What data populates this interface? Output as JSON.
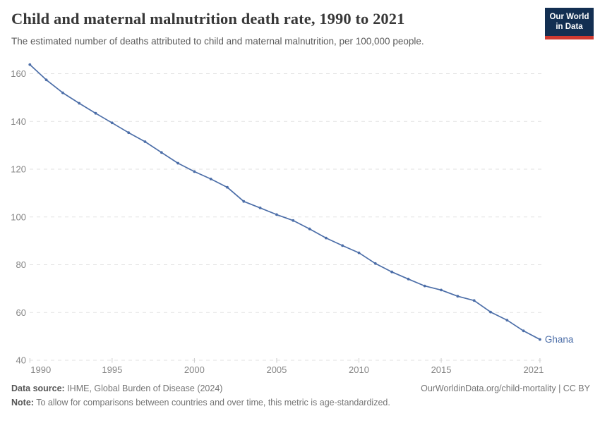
{
  "header": {
    "title": "Child and maternal malnutrition death rate, 1990 to 2021",
    "subtitle": "The estimated number of deaths attributed to child and maternal malnutrition, per 100,000 people.",
    "logo": {
      "line1": "Our World",
      "line2": "in Data"
    }
  },
  "chart_data": {
    "type": "line",
    "title": "Child and maternal malnutrition death rate, 1990 to 2021",
    "x": [
      1990,
      1991,
      1992,
      1993,
      1994,
      1995,
      1996,
      1997,
      1998,
      1999,
      2000,
      2001,
      2002,
      2003,
      2004,
      2005,
      2006,
      2007,
      2008,
      2009,
      2010,
      2011,
      2012,
      2013,
      2014,
      2015,
      2016,
      2017,
      2018,
      2019,
      2020,
      2021
    ],
    "series": [
      {
        "name": "Ghana",
        "color": "#4c6ea8",
        "values": [
          163.8,
          157.4,
          152.0,
          147.6,
          143.4,
          139.4,
          135.3,
          131.5,
          127.0,
          122.5,
          119.0,
          115.9,
          112.4,
          106.5,
          103.8,
          101.0,
          98.5,
          95.0,
          91.2,
          88.0,
          85.0,
          80.5,
          77.0,
          74.0,
          71.1,
          69.4,
          66.8,
          65.0,
          60.2,
          56.8,
          52.3,
          48.7
        ]
      }
    ],
    "xlim": [
      1990,
      2021
    ],
    "ylim": [
      40,
      165
    ],
    "y_ticks": [
      40,
      60,
      80,
      100,
      120,
      140,
      160
    ],
    "x_ticks": [
      1990,
      1995,
      2000,
      2005,
      2010,
      2015,
      2021
    ],
    "grid": "horizontal-dashed",
    "legend_position": "end-of-line-label",
    "end_label": "Ghana",
    "xlabel": "",
    "ylabel": ""
  },
  "footer": {
    "datasource_label": "Data source:",
    "datasource_value": " IHME, Global Burden of Disease (2024)",
    "note_label": "Note:",
    "note_value": " To allow for comparisons between countries and over time, this metric is age-standardized.",
    "link": "OurWorldinData.org/child-mortality | CC BY"
  },
  "colors": {
    "line": "#4c6ea8",
    "grid": "#e2e2e2",
    "tick_label": "#858585",
    "tick_mark": "#cdcdcd",
    "title": "#383838",
    "subtitle": "#5b5b5b",
    "footer_text": "#757575",
    "logo_bg": "#132f52",
    "logo_bar": "#cf3a31"
  }
}
